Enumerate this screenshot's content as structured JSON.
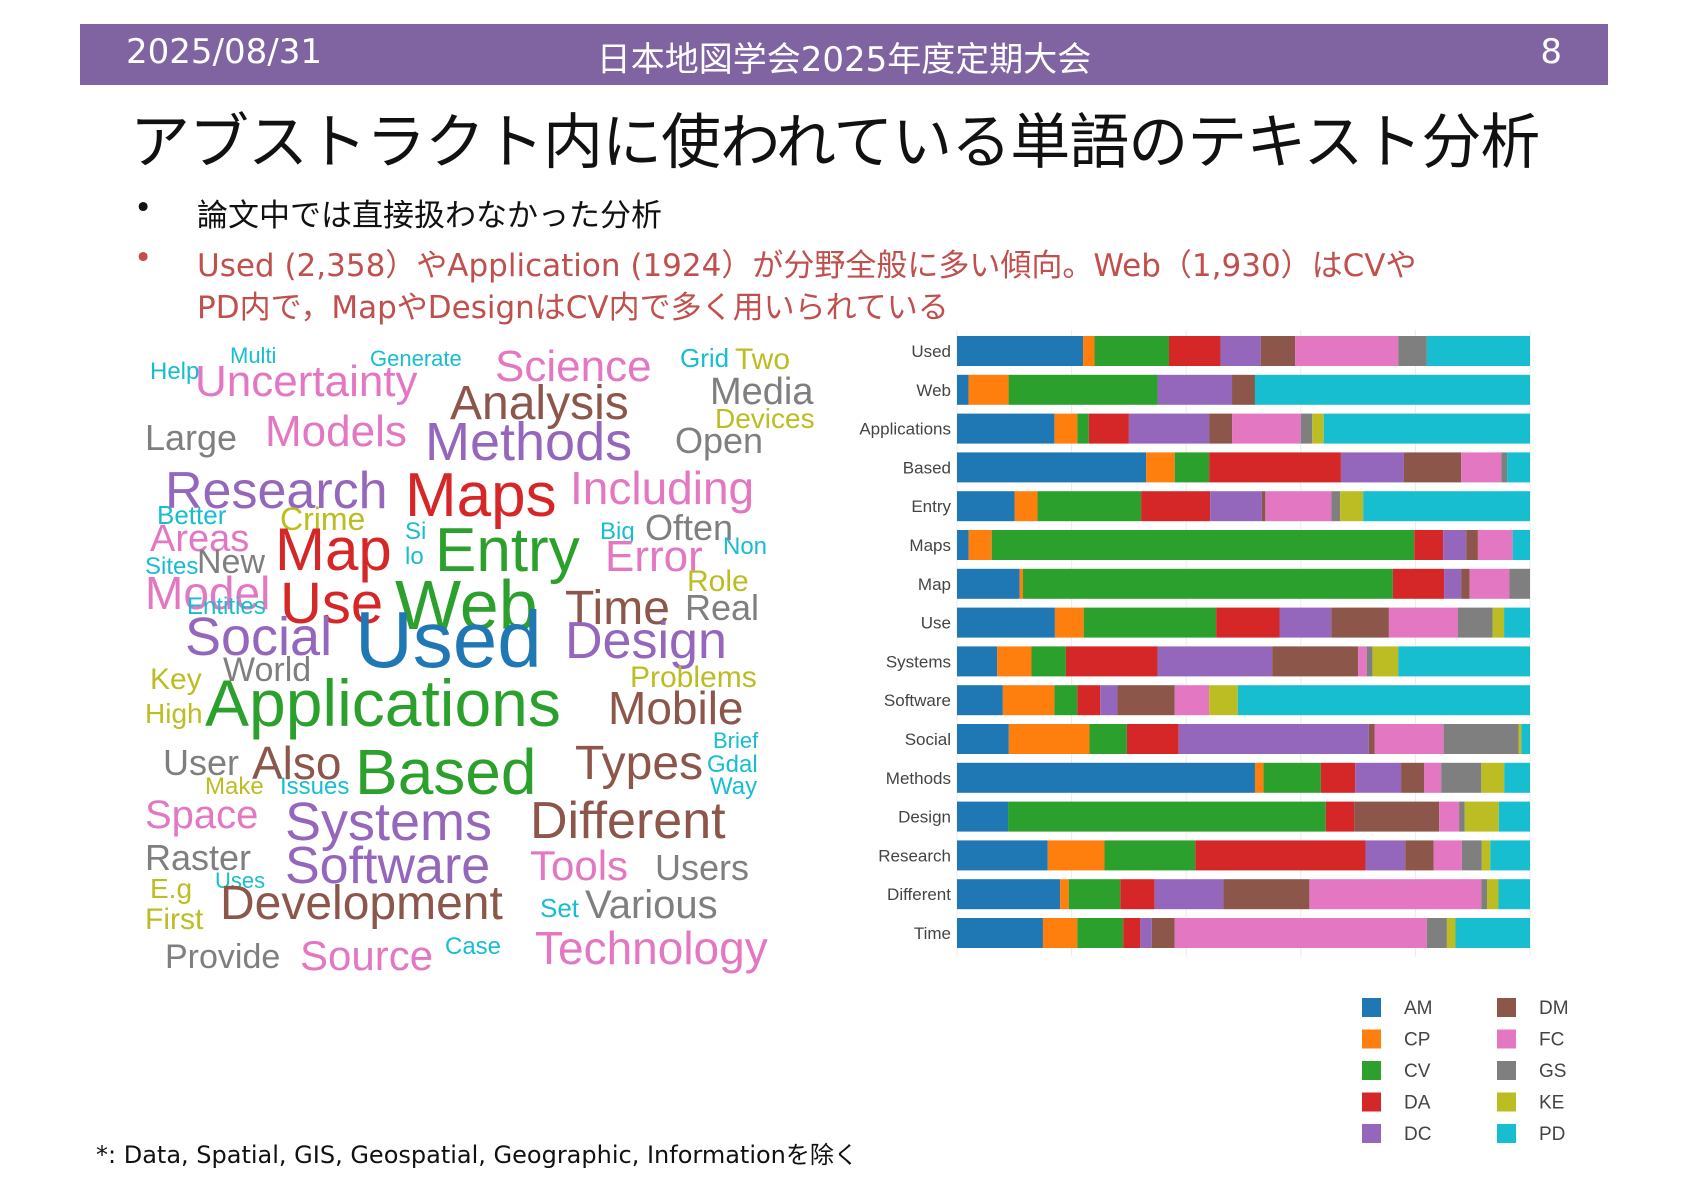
{
  "header": {
    "date": "2025/08/31",
    "conference": "日本地図学会2025年度定期大会",
    "page": "8"
  },
  "title": "アブストラクト内に使われている単語のテキスト分析",
  "bullets": [
    {
      "marker": "•",
      "text": "論文中では直接扱わなかった分析"
    },
    {
      "marker": "•",
      "text": "Used (2,358）やApplication (1924）が分野全般に多い傾向。Web（1,930）はCVや"
    },
    {
      "marker": "",
      "text": "PD内で，MapやDesignはCV内で多く用いられている"
    }
  ],
  "footnote": "*: Data, Spatial, GIS, Geospatial, Geographic, Informationを除く",
  "colors": {
    "header_bg": "#8064a2",
    "AM": "#1f77b4",
    "CP": "#ff7f0e",
    "CV": "#2ca02c",
    "DA": "#d62728",
    "DC": "#9467bd",
    "DM": "#8c564b",
    "FC": "#e377c2",
    "GS": "#7f7f7f",
    "KE": "#bcbd22",
    "PD": "#17becf"
  },
  "wordcloud": [
    {
      "word": "Help",
      "color": "#17becf"
    },
    {
      "word": "Multi",
      "color": "#17becf"
    },
    {
      "word": "Generate",
      "color": "#17becf"
    },
    {
      "word": "Science",
      "color": "#e377c2"
    },
    {
      "word": "Grid",
      "color": "#17becf"
    },
    {
      "word": "Two",
      "color": "#bcbd22"
    },
    {
      "word": "Uncertainty",
      "color": "#e377c2"
    },
    {
      "word": "Media",
      "color": "#7f7f7f"
    },
    {
      "word": "Analysis",
      "color": "#8c564b"
    },
    {
      "word": "Devices",
      "color": "#bcbd22"
    },
    {
      "word": "Large",
      "color": "#7f7f7f"
    },
    {
      "word": "Models",
      "color": "#e377c2"
    },
    {
      "word": "Open",
      "color": "#7f7f7f"
    },
    {
      "word": "Methods",
      "color": "#9467bd"
    },
    {
      "word": "Research",
      "color": "#9467bd"
    },
    {
      "word": "Including",
      "color": "#e377c2"
    },
    {
      "word": "Maps",
      "color": "#d62728"
    },
    {
      "word": "Better",
      "color": "#17becf"
    },
    {
      "word": "Crime",
      "color": "#bcbd22"
    },
    {
      "word": "Areas",
      "color": "#e377c2"
    },
    {
      "word": "Big",
      "color": "#17becf"
    },
    {
      "word": "Often",
      "color": "#7f7f7f"
    },
    {
      "word": "Map",
      "color": "#d62728"
    },
    {
      "word": "Si",
      "color": "#17becf"
    },
    {
      "word": "lo",
      "color": "#17becf"
    },
    {
      "word": "Entry",
      "color": "#2ca02c"
    },
    {
      "word": "Error",
      "color": "#e377c2"
    },
    {
      "word": "Non",
      "color": "#17becf"
    },
    {
      "word": "Sites",
      "color": "#17becf"
    },
    {
      "word": "New",
      "color": "#7f7f7f"
    },
    {
      "word": "Role",
      "color": "#bcbd22"
    },
    {
      "word": "Model",
      "color": "#e377c2"
    },
    {
      "word": "Use",
      "color": "#d62728"
    },
    {
      "word": "Web",
      "color": "#2ca02c"
    },
    {
      "word": "Time",
      "color": "#8c564b"
    },
    {
      "word": "Real",
      "color": "#7f7f7f"
    },
    {
      "word": "Entities",
      "color": "#17becf"
    },
    {
      "word": "Social",
      "color": "#9467bd"
    },
    {
      "word": "Used",
      "color": "#1f77b4"
    },
    {
      "word": "Design",
      "color": "#9467bd"
    },
    {
      "word": "Key",
      "color": "#bcbd22"
    },
    {
      "word": "World",
      "color": "#7f7f7f"
    },
    {
      "word": "Problems",
      "color": "#bcbd22"
    },
    {
      "word": "High",
      "color": "#bcbd22"
    },
    {
      "word": "Applications",
      "color": "#2ca02c"
    },
    {
      "word": "Mobile",
      "color": "#8c564b"
    },
    {
      "word": "Brief",
      "color": "#17becf"
    },
    {
      "word": "Gdal",
      "color": "#17becf"
    },
    {
      "word": "User",
      "color": "#7f7f7f"
    },
    {
      "word": "Also",
      "color": "#8c564b"
    },
    {
      "word": "Based",
      "color": "#2ca02c"
    },
    {
      "word": "Types",
      "color": "#8c564b"
    },
    {
      "word": "Way",
      "color": "#17becf"
    },
    {
      "word": "Make",
      "color": "#bcbd22"
    },
    {
      "word": "Issues",
      "color": "#17becf"
    },
    {
      "word": "Space",
      "color": "#e377c2"
    },
    {
      "word": "Systems",
      "color": "#9467bd"
    },
    {
      "word": "Different",
      "color": "#8c564b"
    },
    {
      "word": "Raster",
      "color": "#7f7f7f"
    },
    {
      "word": "Software",
      "color": "#9467bd"
    },
    {
      "word": "Tools",
      "color": "#e377c2"
    },
    {
      "word": "Users",
      "color": "#7f7f7f"
    },
    {
      "word": "E.g",
      "color": "#bcbd22"
    },
    {
      "word": "Uses",
      "color": "#17becf"
    },
    {
      "word": "Development",
      "color": "#8c564b"
    },
    {
      "word": "Set",
      "color": "#17becf"
    },
    {
      "word": "Various",
      "color": "#7f7f7f"
    },
    {
      "word": "First",
      "color": "#bcbd22"
    },
    {
      "word": "Provide",
      "color": "#7f7f7f"
    },
    {
      "word": "Source",
      "color": "#e377c2"
    },
    {
      "word": "Case",
      "color": "#17becf"
    },
    {
      "word": "Technology",
      "color": "#e377c2"
    }
  ],
  "chart_data": {
    "type": "bar",
    "stacked": "percent",
    "orientation": "horizontal",
    "categories": [
      "Used",
      "Web",
      "Applications",
      "Based",
      "Entry",
      "Maps",
      "Map",
      "Use",
      "Systems",
      "Software",
      "Social",
      "Methods",
      "Design",
      "Research",
      "Different",
      "Time"
    ],
    "legend": {
      "position": "bottom-right",
      "entries": [
        "AM",
        "DM",
        "CP",
        "FC",
        "CV",
        "GS",
        "DA",
        "KE",
        "DC",
        "PD"
      ]
    },
    "series": [
      {
        "name": "AM",
        "values": [
          22,
          2,
          17,
          33,
          10,
          2,
          11,
          17,
          7,
          8,
          9,
          52,
          9,
          16,
          18,
          15
        ]
      },
      {
        "name": "CP",
        "values": [
          2,
          7,
          4,
          5,
          4,
          4,
          0.6,
          5,
          6,
          9,
          14,
          1.5,
          0,
          10,
          1.5,
          6
        ]
      },
      {
        "name": "CV",
        "values": [
          13,
          26,
          2,
          6,
          18,
          73,
          65,
          23,
          6,
          4,
          6.5,
          10,
          56,
          16,
          9,
          8
        ]
      },
      {
        "name": "DA",
        "values": [
          9,
          0,
          7,
          23,
          12,
          5,
          9,
          11,
          16,
          4,
          9,
          6,
          5,
          30,
          6,
          3
        ]
      },
      {
        "name": "DC",
        "values": [
          7,
          13,
          14,
          11,
          9,
          4,
          3,
          9,
          20,
          3,
          33,
          8,
          0,
          7,
          12,
          2
        ]
      },
      {
        "name": "DM",
        "values": [
          6,
          4,
          4,
          10,
          0.6,
          2,
          1.5,
          10,
          15,
          10,
          1,
          4,
          15,
          5,
          15,
          4
        ]
      },
      {
        "name": "FC",
        "values": [
          18,
          0,
          12,
          7,
          11.5,
          6,
          7,
          12,
          1.5,
          6,
          12,
          3,
          3.5,
          5,
          30,
          44
        ]
      },
      {
        "name": "GS",
        "values": [
          5,
          0,
          2,
          1,
          1.5,
          0,
          3.6,
          6,
          1,
          0,
          13,
          7,
          1,
          3.5,
          1,
          3.5
        ]
      },
      {
        "name": "KE",
        "values": [
          0,
          0,
          2,
          0,
          4,
          0,
          0,
          2,
          4.5,
          5,
          0.5,
          4,
          6,
          1.5,
          2,
          1.5
        ]
      },
      {
        "name": "PD",
        "values": [
          18,
          48,
          36,
          4,
          29,
          3,
          0,
          4.5,
          23,
          51,
          1.5,
          4.5,
          5.5,
          7,
          5.5,
          13
        ]
      }
    ]
  }
}
